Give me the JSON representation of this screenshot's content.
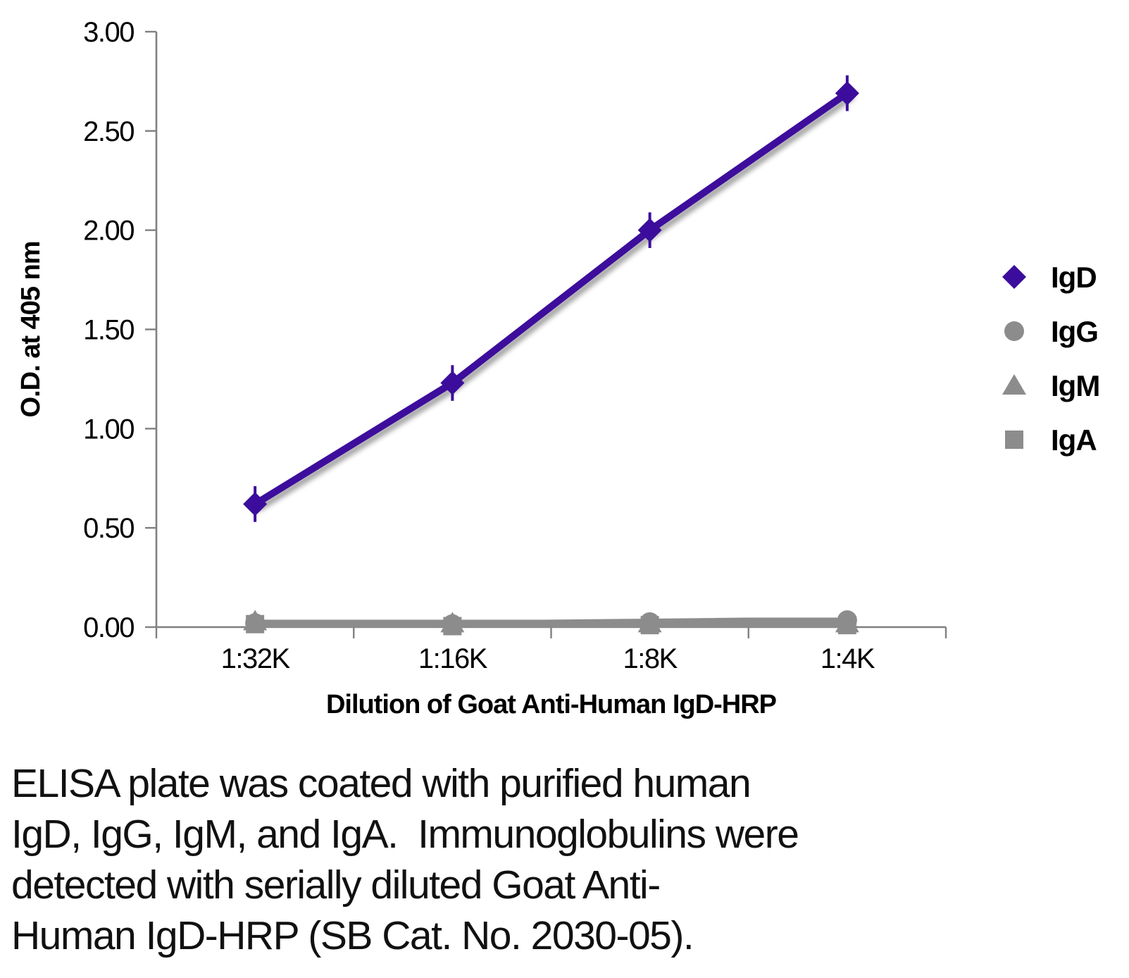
{
  "figure": {
    "caption_lines": [
      "ELISA plate was coated with purified human",
      "IgD, IgG, IgM, and IgA.  Immunoglobulins were",
      "detected with serially diluted Goat Anti-",
      "Human IgD-HRP (SB Cat. No. 2030-05)."
    ]
  },
  "chart_data": {
    "type": "line",
    "title": "",
    "xlabel": "Dilution of Goat Anti-Human IgD-HRP",
    "ylabel": "O.D. at 405 nm",
    "categories": [
      "1:32K",
      "1:16K",
      "1:8K",
      "1:4K"
    ],
    "ylim": [
      0,
      3
    ],
    "ytick_step": 0.5,
    "ytick_labels": [
      "0.00",
      "0.50",
      "1.00",
      "1.50",
      "2.00",
      "2.50",
      "3.00"
    ],
    "grid": true,
    "legend_position": "right",
    "series": [
      {
        "name": "IgD",
        "color": "#3C0D9C",
        "marker": "diamond",
        "values": [
          0.62,
          1.23,
          2.0,
          2.69
        ],
        "error": 0.09
      },
      {
        "name": "IgG",
        "color": "#8C8C8C",
        "marker": "circle",
        "values": [
          0.02,
          0.015,
          0.025,
          0.035
        ]
      },
      {
        "name": "IgM",
        "color": "#8C8C8C",
        "marker": "triangle",
        "values": [
          0.03,
          0.02,
          0.02,
          0.02
        ]
      },
      {
        "name": "IgA",
        "color": "#8C8C8C",
        "marker": "square",
        "values": [
          0.015,
          0.005,
          0.01,
          0.01
        ]
      }
    ],
    "colors": {
      "grid": "#A6A6A6",
      "axis": "#808080",
      "text": "#000000"
    }
  }
}
